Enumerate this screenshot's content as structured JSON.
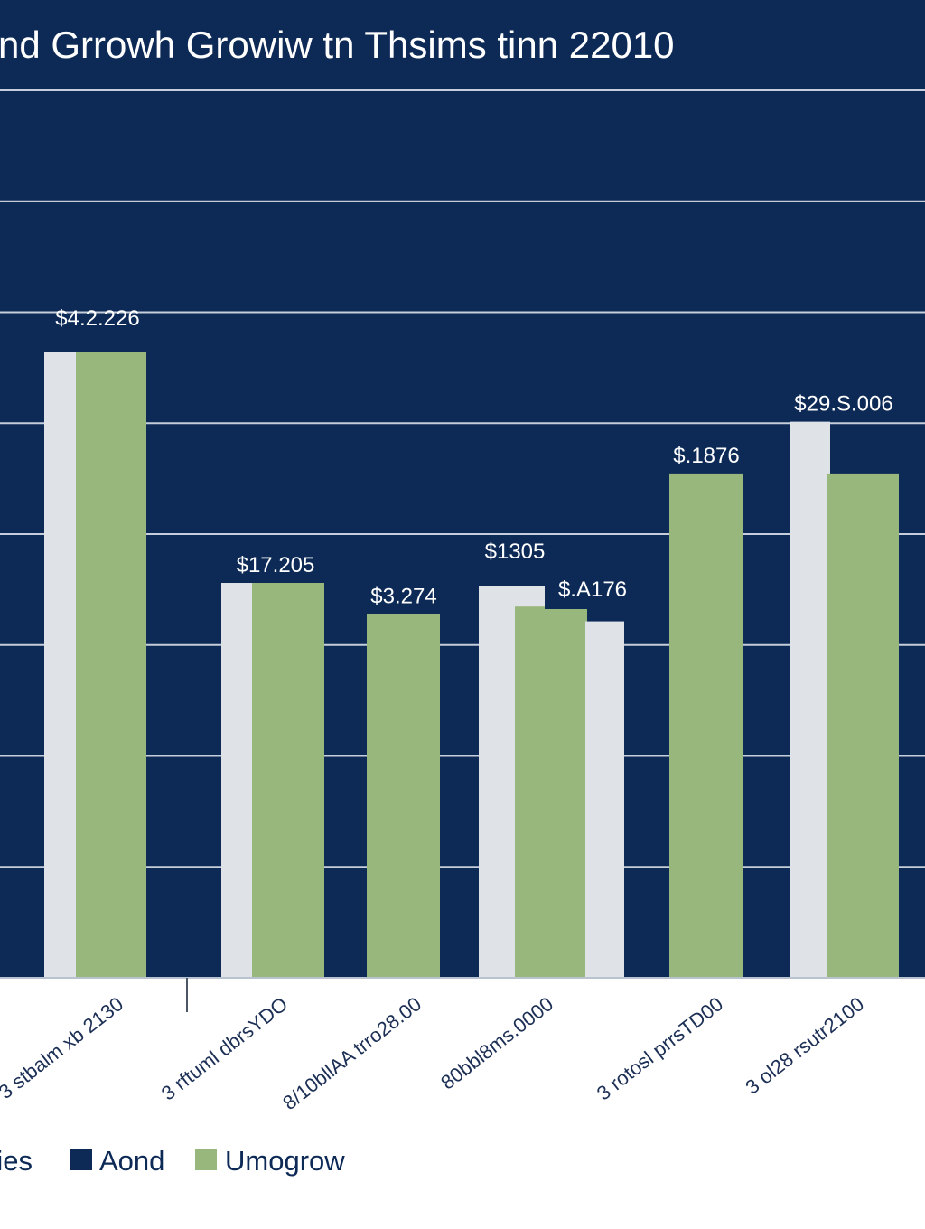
{
  "chart_data": {
    "type": "bar",
    "title": "nd Grrowh Growiw tn Thsims tinn 22010",
    "categories": [
      "3 stbalm xb 2130",
      "3 rftuml dbrsYDO",
      "8/10bllAA trro28.00",
      "80bbl8ms.0000",
      "3 rotosl prrsTD00",
      "3 ol28 rsutr2100"
    ],
    "series": [
      {
        "name": "ies",
        "color": "#dfe2e6",
        "values": [
          42.3,
          26.7,
          null,
          26.5,
          24.1,
          37.6
        ],
        "labels": [
          "$4.2.226",
          "",
          "",
          "$1305",
          "$.A176",
          "$29.S.006"
        ]
      },
      {
        "name": "Umogrow",
        "color": "#98b77d",
        "values": [
          42.3,
          26.7,
          24.6,
          25.1,
          null,
          34.1
        ],
        "labels": [
          "",
          "$17.205",
          "$3.274",
          "",
          "",
          ""
        ]
      },
      {
        "name": "Aond",
        "color": "#0d2a56",
        "values": [
          null,
          null,
          null,
          null,
          34.1,
          null
        ],
        "labels": [
          "",
          "",
          "",
          "",
          "$.1876",
          ""
        ]
      }
    ],
    "extra_bars": [
      {
        "category_index": 4,
        "value": 34.1,
        "color": "#98b77d"
      }
    ],
    "legend": {
      "placement": "bottom",
      "entries": [
        {
          "label": "ies",
          "color": "#dfe2e6"
        },
        {
          "label": "Aond",
          "color": "#0d2a56"
        },
        {
          "label": "Umogrow",
          "color": "#98b77d"
        }
      ]
    },
    "ylim": [
      0,
      60
    ],
    "gridlines": [
      0,
      7.5,
      15,
      22.5,
      30,
      37.5,
      45,
      52.5,
      60
    ],
    "grid": true,
    "background_color": "#0d2a56",
    "grid_color": "#e6ebf2"
  }
}
